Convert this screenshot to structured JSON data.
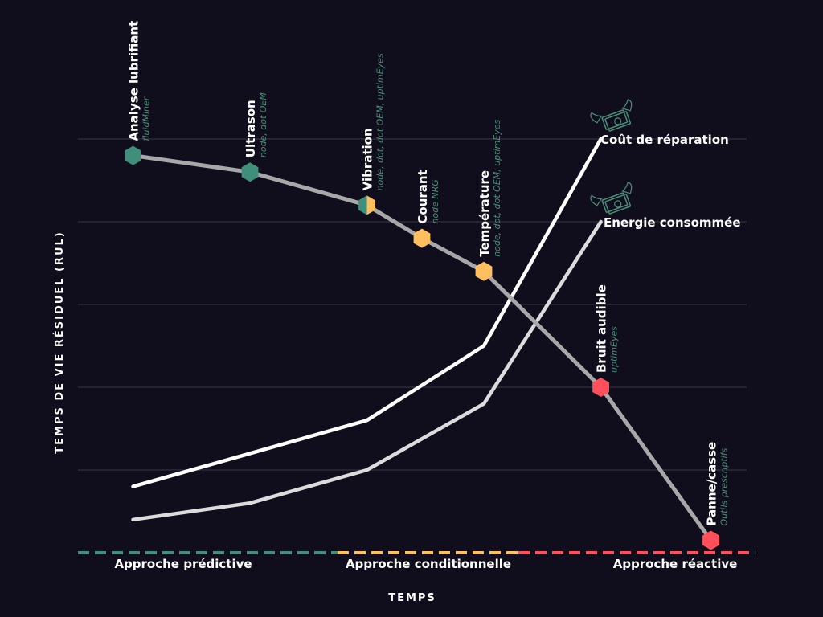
{
  "colors": {
    "background": "#100e1c",
    "grid": "#3a3848",
    "rul_line": "#a8a8a8",
    "cost_line": "#ffffff",
    "energy_line": "#dcdcdc",
    "predictive": "#3f8f7a",
    "conditional": "#ffbf5e",
    "reactive": "#ff4f5a",
    "panne_label": "#ff5a64",
    "subtext": "#4a8f78"
  },
  "axes": {
    "ylabel": "TEMPS DE VIE RÉSIDUEL (RUL)",
    "xlabel": "TEMPS"
  },
  "approaches": [
    {
      "label": "Approche prédictive",
      "color": "#3f8f7a"
    },
    {
      "label": "Approche conditionnelle",
      "color": "#ffbf5e"
    },
    {
      "label": "Approche réactive",
      "color": "#ff4f5a"
    }
  ],
  "chart_data": {
    "type": "line",
    "xlabel": "TEMPS",
    "ylabel": "TEMPS DE VIE RÉSIDUEL (RUL)",
    "xlim": [
      0,
      10
    ],
    "ylim": [
      0,
      5
    ],
    "grid": true,
    "series": [
      {
        "key": "rul",
        "color": "#a8a8a8",
        "points": [
          [
            0.8,
            4.8
          ],
          [
            2.5,
            4.6
          ],
          [
            4.2,
            4.2
          ],
          [
            5.0,
            3.8
          ],
          [
            5.9,
            3.4
          ],
          [
            7.6,
            2.0
          ],
          [
            9.2,
            0.15
          ]
        ]
      },
      {
        "key": "cout",
        "name": "Coût de réparation",
        "color": "#ffffff",
        "points": [
          [
            0.8,
            0.8
          ],
          [
            2.5,
            1.2
          ],
          [
            4.2,
            1.6
          ],
          [
            5.9,
            2.5
          ],
          [
            7.6,
            5.0
          ]
        ]
      },
      {
        "key": "energie",
        "name": "Energie consommée",
        "color": "#dcdcdc",
        "points": [
          [
            0.8,
            0.4
          ],
          [
            2.5,
            0.6
          ],
          [
            4.2,
            1.0
          ],
          [
            5.9,
            1.8
          ],
          [
            7.6,
            4.0
          ]
        ]
      }
    ],
    "markers": [
      {
        "x": 0.8,
        "y": 4.8,
        "label": "Analyse lubrifiant",
        "sub": "fluidMiner",
        "color": "#3f8f7a",
        "color2": "#3f8f7a",
        "label_color": "#ffffff"
      },
      {
        "x": 2.5,
        "y": 4.6,
        "label": "Ultrason",
        "sub": "node, dot OEM",
        "color": "#3f8f7a",
        "color2": "#3f8f7a",
        "label_color": "#ffffff"
      },
      {
        "x": 4.2,
        "y": 4.2,
        "label": "Vibration",
        "sub": "node, dot, dot OEM, uptimEyes",
        "color": "#3f8f7a",
        "color2": "#ffbf5e",
        "label_color": "#ffffff"
      },
      {
        "x": 5.0,
        "y": 3.8,
        "label": "Courant",
        "sub": "node NRG",
        "color": "#ffbf5e",
        "color2": "#ffbf5e",
        "label_color": "#ffffff"
      },
      {
        "x": 5.9,
        "y": 3.4,
        "label": "Température",
        "sub": "node, dot, dot OEM, uptimEyes",
        "color": "#ffbf5e",
        "color2": "#ffbf5e",
        "label_color": "#ffffff"
      },
      {
        "x": 7.6,
        "y": 2.0,
        "label": "Bruit audible",
        "sub": "uptimEyes",
        "color": "#ff4f5a",
        "color2": "#ff4f5a",
        "label_color": "#ffffff"
      },
      {
        "x": 9.2,
        "y": 0.15,
        "label": "Panne/casse",
        "sub": "Outils prescriptifs",
        "color": "#ff4f5a",
        "color2": "#ff4f5a",
        "label_color": "#ff5a64"
      }
    ],
    "legend_icon": "money-with-wings-icon"
  }
}
